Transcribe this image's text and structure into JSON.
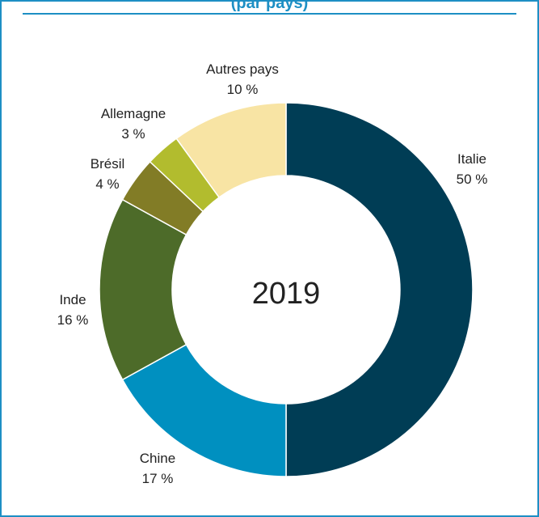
{
  "chart_data": {
    "type": "pie",
    "variant": "donut",
    "title_fragment": "(par pays)",
    "center_label": "2019",
    "slices": [
      {
        "label": "Italie",
        "value": 50,
        "value_label": "50 %",
        "color": "#003d55"
      },
      {
        "label": "Chine",
        "value": 17,
        "value_label": "17 %",
        "color": "#0090c0"
      },
      {
        "label": "Inde",
        "value": 16,
        "value_label": "16 %",
        "color": "#4d6b29"
      },
      {
        "label": "Brésil",
        "value": 4,
        "value_label": "4 %",
        "color": "#827c26"
      },
      {
        "label": "Allemagne",
        "value": 3,
        "value_label": "3 %",
        "color": "#b2bc2e"
      },
      {
        "label": "Autres pays",
        "value": 10,
        "value_label": "10 %",
        "color": "#f8e4a4"
      }
    ]
  }
}
